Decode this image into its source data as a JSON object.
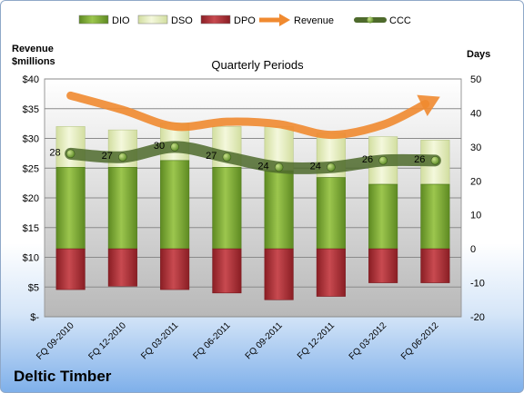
{
  "chart_data": {
    "type": "bar",
    "title": "Quarterly Periods",
    "ylabel_left": "Revenue\n$millions",
    "ylabel_right": "Days",
    "company": "Deltic Timber",
    "categories": [
      "FQ 09-2010",
      "FQ 12-2010",
      "FQ 03-2011",
      "FQ 06-2011",
      "FQ 09-2011",
      "FQ 12-2011",
      "FQ 03-2012",
      "FQ 06-2012"
    ],
    "left_axis": {
      "min": 0,
      "max": 40,
      "step": 5,
      "tick_labels": [
        "$-",
        "$5",
        "$10",
        "$15",
        "$20",
        "$25",
        "$30",
        "$35",
        "$40"
      ]
    },
    "right_axis": {
      "min": -20,
      "max": 50,
      "step": 10,
      "tick_labels": [
        "-20",
        "-10",
        "0",
        "10",
        "20",
        "30",
        "40",
        "50"
      ]
    },
    "series": [
      {
        "name": "DIO",
        "axis": "right",
        "kind": "bar",
        "values": [
          24,
          24,
          26,
          24,
          23,
          21,
          19,
          19
        ]
      },
      {
        "name": "DSO",
        "axis": "right",
        "kind": "bar",
        "values": [
          12,
          11,
          11,
          12,
          13,
          13,
          14,
          13
        ]
      },
      {
        "name": "DPO",
        "axis": "right",
        "kind": "bar",
        "values": [
          -12,
          -11,
          -12,
          -13,
          -15,
          -14,
          -10,
          -10
        ]
      },
      {
        "name": "Revenue",
        "axis": "left",
        "kind": "arrow",
        "values": [
          37.2,
          34.8,
          32.0,
          32.8,
          32.4,
          30.6,
          32.3,
          36.6
        ]
      },
      {
        "name": "CCC",
        "axis": "right",
        "kind": "line",
        "values": [
          28,
          27,
          30,
          27,
          24,
          24,
          26,
          26
        ],
        "labels": [
          "28",
          "27",
          "30",
          "27",
          "24",
          "24",
          "26",
          "26"
        ]
      }
    ],
    "legend": {
      "position": "top",
      "entries": [
        "DIO",
        "DSO",
        "DPO",
        "Revenue",
        "CCC"
      ]
    },
    "colors": {
      "DIO": "#7ea83a",
      "DSO": "#e6efc0",
      "DPO": "#b0343a",
      "Revenue": "#f08a30",
      "CCC": "#4e6a2c"
    },
    "grid": true
  }
}
